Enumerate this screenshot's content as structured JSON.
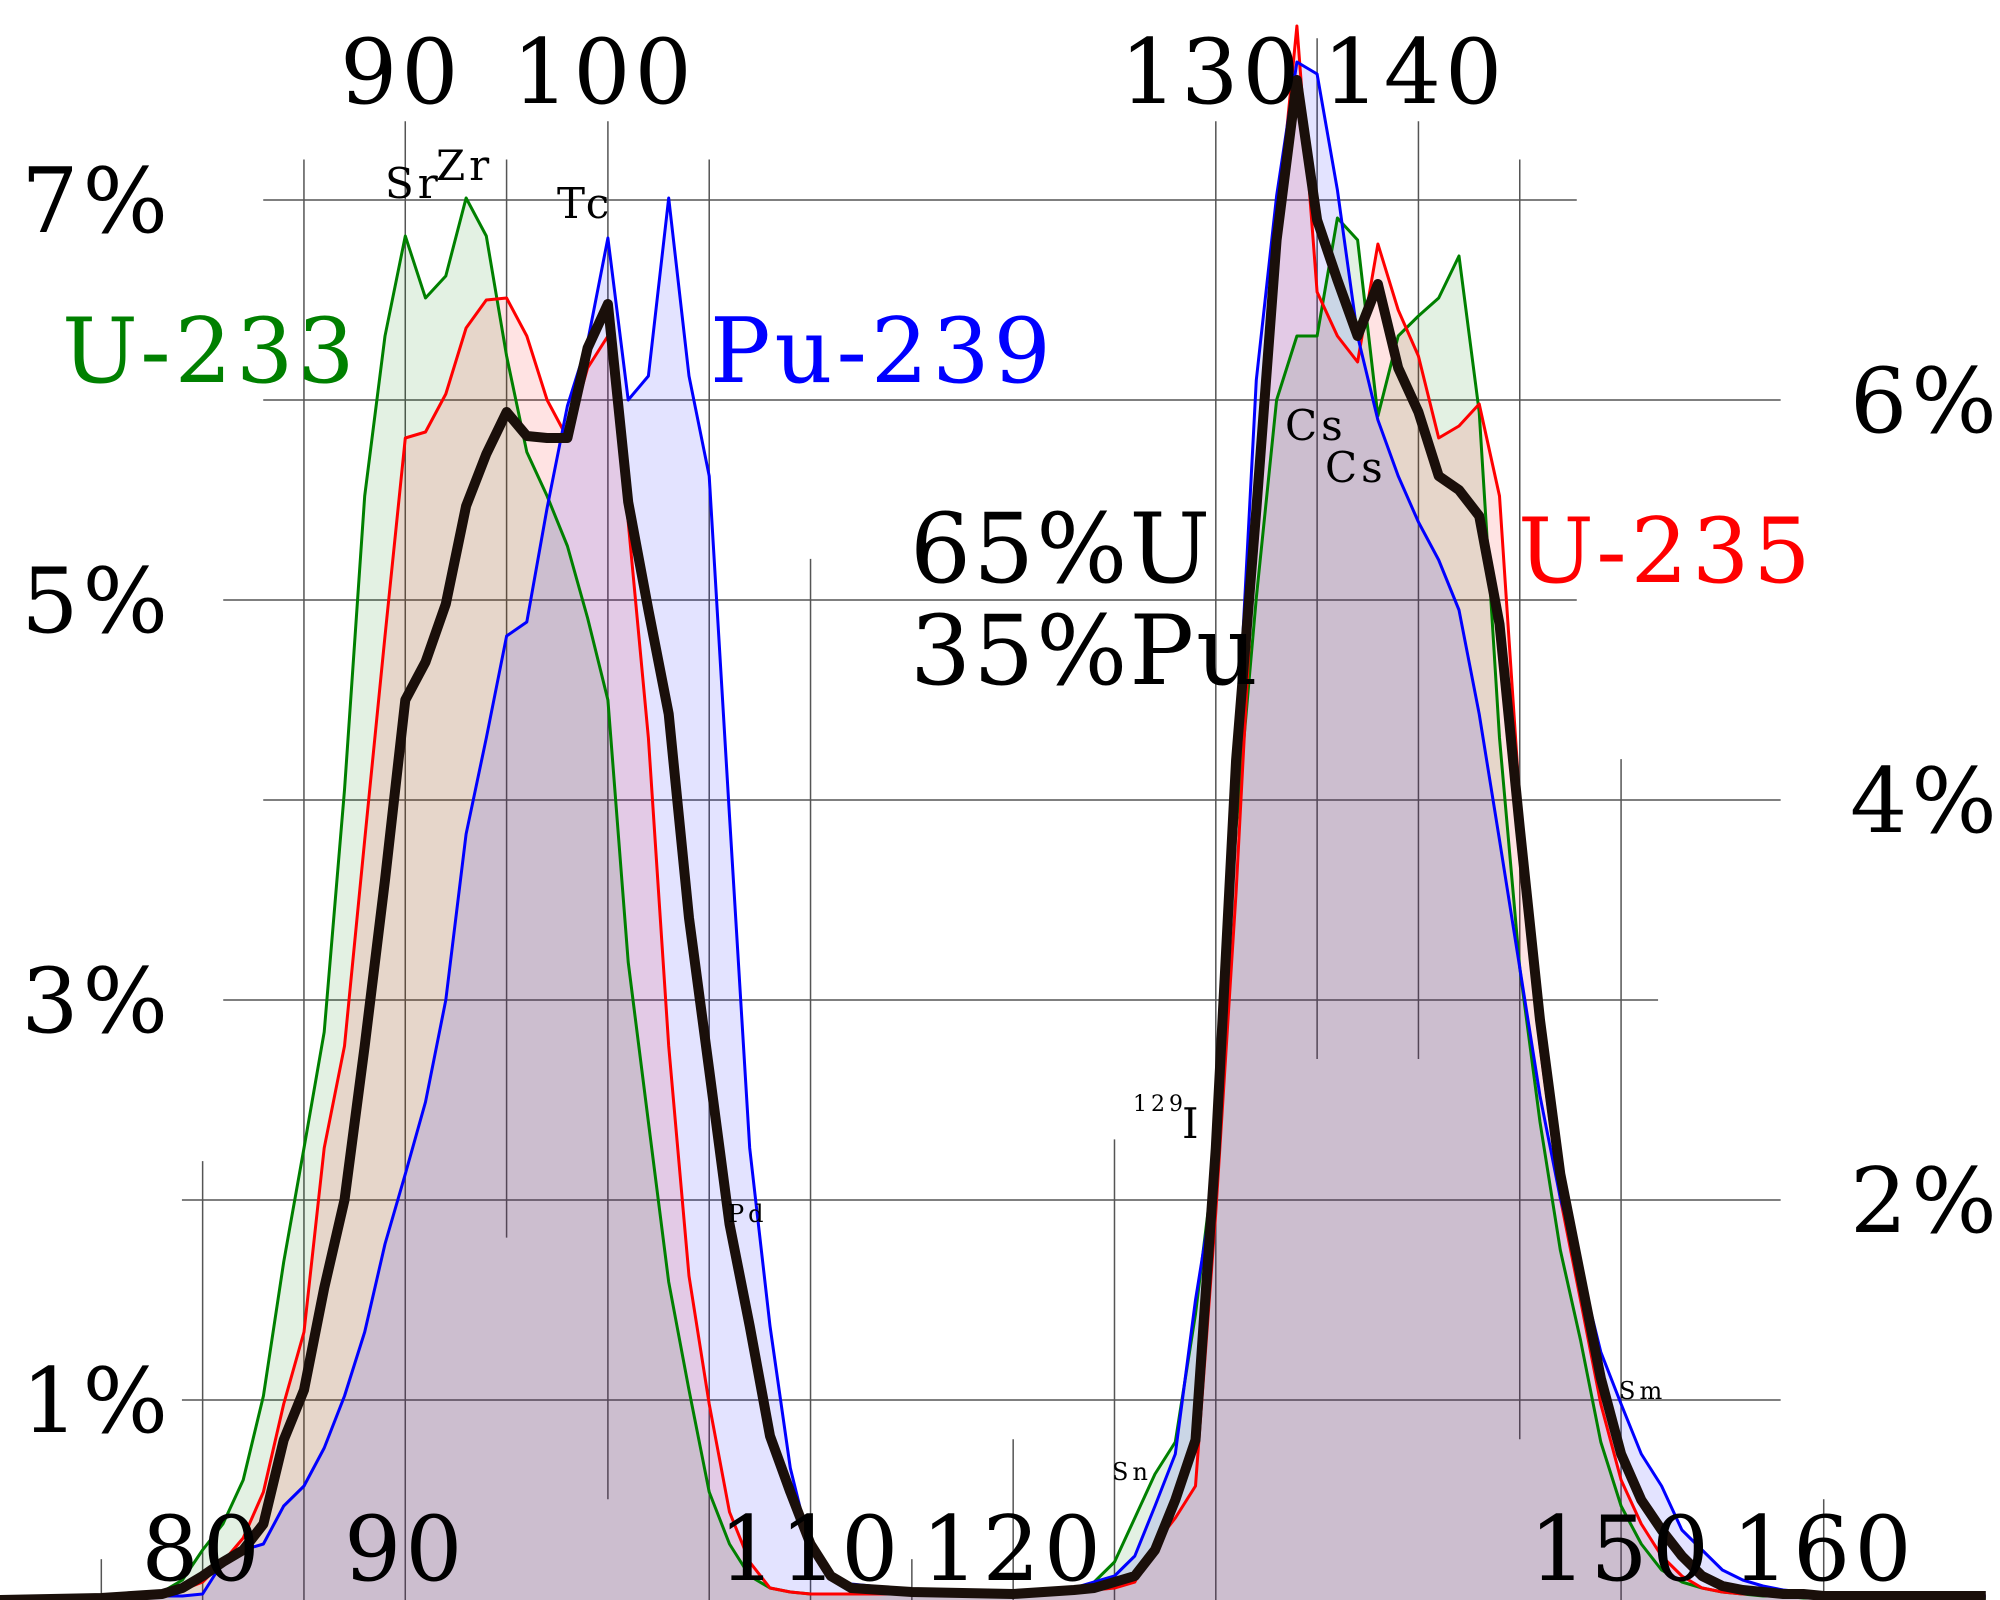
{
  "chart_data": {
    "type": "area",
    "x": [
      70,
      75,
      78,
      79,
      80,
      81,
      82,
      83,
      84,
      85,
      86,
      87,
      88,
      89,
      90,
      91,
      92,
      93,
      94,
      95,
      96,
      97,
      98,
      99,
      100,
      101,
      102,
      103,
      104,
      105,
      106,
      107,
      108,
      109,
      110,
      111,
      112,
      115,
      120,
      123,
      124,
      125,
      126,
      127,
      128,
      129,
      130,
      131,
      132,
      133,
      134,
      135,
      136,
      137,
      138,
      139,
      140,
      141,
      142,
      143,
      144,
      145,
      146,
      147,
      148,
      149,
      150,
      151,
      152,
      153,
      154,
      155,
      156,
      157,
      158,
      159,
      160,
      163,
      168
    ],
    "series": [
      {
        "name": "U-233",
        "color": "#008000",
        "values": [
          0.01,
          0.02,
          0.04,
          0.1,
          0.25,
          0.38,
          0.6,
          1.02,
          1.69,
          2.26,
          2.84,
          4.05,
          5.52,
          6.32,
          6.82,
          6.51,
          6.62,
          7.01,
          6.82,
          6.22,
          5.74,
          5.52,
          5.27,
          4.91,
          4.5,
          3.19,
          2.39,
          1.59,
          1.05,
          0.54,
          0.28,
          0.12,
          0.06,
          0.04,
          0.03,
          0.03,
          0.03,
          0.03,
          0.03,
          0.05,
          0.09,
          0.19,
          0.41,
          0.63,
          0.79,
          1.43,
          2.26,
          3.86,
          5.01,
          6.0,
          6.32,
          6.32,
          6.91,
          6.8,
          5.92,
          6.32,
          6.42,
          6.51,
          6.72,
          5.94,
          4.31,
          3.16,
          2.39,
          1.75,
          1.3,
          0.79,
          0.47,
          0.28,
          0.15,
          0.09,
          0.06,
          0.04,
          0.03,
          0.02,
          0.02,
          0.01,
          0.01,
          0.01,
          0.01
        ]
      },
      {
        "name": "U-235",
        "color": "#ff0000",
        "values": [
          0.01,
          0.02,
          0.03,
          0.05,
          0.09,
          0.19,
          0.31,
          0.54,
          0.98,
          1.34,
          2.26,
          2.77,
          3.8,
          4.82,
          5.81,
          5.84,
          6.03,
          6.36,
          6.5,
          6.51,
          6.32,
          6.0,
          5.81,
          6.16,
          6.32,
          5.39,
          4.31,
          2.77,
          1.62,
          0.98,
          0.44,
          0.19,
          0.06,
          0.04,
          0.03,
          0.03,
          0.03,
          0.03,
          0.03,
          0.04,
          0.05,
          0.06,
          0.09,
          0.28,
          0.41,
          0.57,
          1.94,
          3.54,
          5.46,
          6.83,
          7.87,
          6.54,
          6.32,
          6.19,
          6.78,
          6.45,
          6.22,
          5.81,
          5.87,
          5.98,
          5.52,
          3.99,
          2.77,
          2.01,
          1.5,
          0.98,
          0.6,
          0.38,
          0.22,
          0.12,
          0.06,
          0.04,
          0.03,
          0.03,
          0.02,
          0.02,
          0.02,
          0.02,
          0.02
        ]
      },
      {
        "name": "Pu-239",
        "color": "#0000ff",
        "values": [
          0,
          0.01,
          0.02,
          0.02,
          0.03,
          0.19,
          0.25,
          0.28,
          0.47,
          0.57,
          0.76,
          1.02,
          1.34,
          1.78,
          2.13,
          2.49,
          3.0,
          3.83,
          4.31,
          4.82,
          4.89,
          5.46,
          5.97,
          6.29,
          6.81,
          6.0,
          6.12,
          7.01,
          6.12,
          5.62,
          3.92,
          2.26,
          1.37,
          0.66,
          0.25,
          0.12,
          0.08,
          0.05,
          0.04,
          0.06,
          0.09,
          0.12,
          0.22,
          0.47,
          0.73,
          1.5,
          2.13,
          4.18,
          6.1,
          7.02,
          7.69,
          7.63,
          7.05,
          6.32,
          5.9,
          5.62,
          5.39,
          5.2,
          4.95,
          4.43,
          3.8,
          3.16,
          2.52,
          2.01,
          1.65,
          1.24,
          0.98,
          0.73,
          0.57,
          0.35,
          0.25,
          0.15,
          0.1,
          0.07,
          0.05,
          0.04,
          0.03,
          0.02,
          0.02
        ]
      },
      {
        "color": "#1a0f0a",
        "values": [
          0,
          0.01,
          0.03,
          0.06,
          0.12,
          0.19,
          0.25,
          0.38,
          0.8,
          1.05,
          1.56,
          2.0,
          2.77,
          3.6,
          4.5,
          4.69,
          4.98,
          5.47,
          5.73,
          5.94,
          5.82,
          5.81,
          5.81,
          6.26,
          6.48,
          5.49,
          4.95,
          4.43,
          3.41,
          2.65,
          1.88,
          1.37,
          0.82,
          0.54,
          0.28,
          0.12,
          0.06,
          0.04,
          0.03,
          0.05,
          0.06,
          0.09,
          0.12,
          0.25,
          0.5,
          0.8,
          2.26,
          4.2,
          5.45,
          6.8,
          7.6,
          6.9,
          6.6,
          6.32,
          6.58,
          6.16,
          5.94,
          5.62,
          5.55,
          5.42,
          4.88,
          3.86,
          2.9,
          2.13,
          1.62,
          1.11,
          0.73,
          0.5,
          0.35,
          0.22,
          0.12,
          0.07,
          0.05,
          0.04,
          0.03,
          0.03,
          0.02,
          0.02,
          0.02
        ]
      }
    ],
    "annotations": [
      "65%U",
      "35%Pu"
    ],
    "element_labels": [
      "Sr",
      "Zr",
      "Tc",
      "Pd",
      "Cs",
      "Cs",
      "129",
      "I",
      "Sn",
      "Sm"
    ],
    "xlim": [
      70,
      168.7
    ],
    "ylim": [
      0,
      8
    ],
    "y2lim": [
      0,
      8
    ],
    "xticks": [
      80,
      90,
      110,
      120,
      150,
      160
    ],
    "x2ticks": [
      90,
      100,
      130,
      140
    ],
    "xgrid": [
      75,
      80,
      85,
      90,
      95,
      100,
      105,
      110,
      115,
      120,
      125,
      130,
      135,
      140,
      145,
      150,
      160
    ],
    "yticks": [
      {
        "value": 1,
        "label": "1%"
      },
      {
        "value": 3,
        "label": "3%"
      },
      {
        "value": 5,
        "label": "5%"
      },
      {
        "value": 7,
        "label": "7%"
      }
    ],
    "y2ticks": [
      {
        "value": 2,
        "label": "2%"
      },
      {
        "value": 4,
        "label": "4%"
      },
      {
        "value": 6,
        "label": "6%"
      }
    ],
    "grid": true
  }
}
